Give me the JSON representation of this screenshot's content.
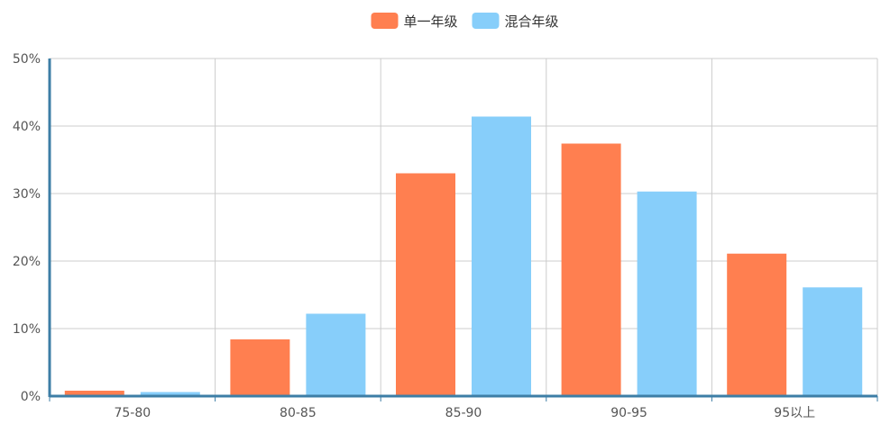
{
  "chart_data": {
    "type": "bar",
    "categories": [
      "75-80",
      "80-85",
      "85-90",
      "90-95",
      "95以上"
    ],
    "series": [
      {
        "name": "单一年级",
        "color": "#FF7F50",
        "values": [
          0.8,
          8.4,
          33.0,
          37.4,
          21.1
        ]
      },
      {
        "name": "混合年级",
        "color": "#87CEFA",
        "values": [
          0.6,
          12.2,
          41.4,
          30.3,
          16.1
        ]
      }
    ],
    "yticks": [
      "0%",
      "10%",
      "20%",
      "30%",
      "40%",
      "50%"
    ],
    "ylim": [
      0,
      50
    ],
    "grid": true,
    "legend_position": "top-center",
    "axis_color": "#3D7EA6",
    "grid_color": "#CCCCCC"
  }
}
